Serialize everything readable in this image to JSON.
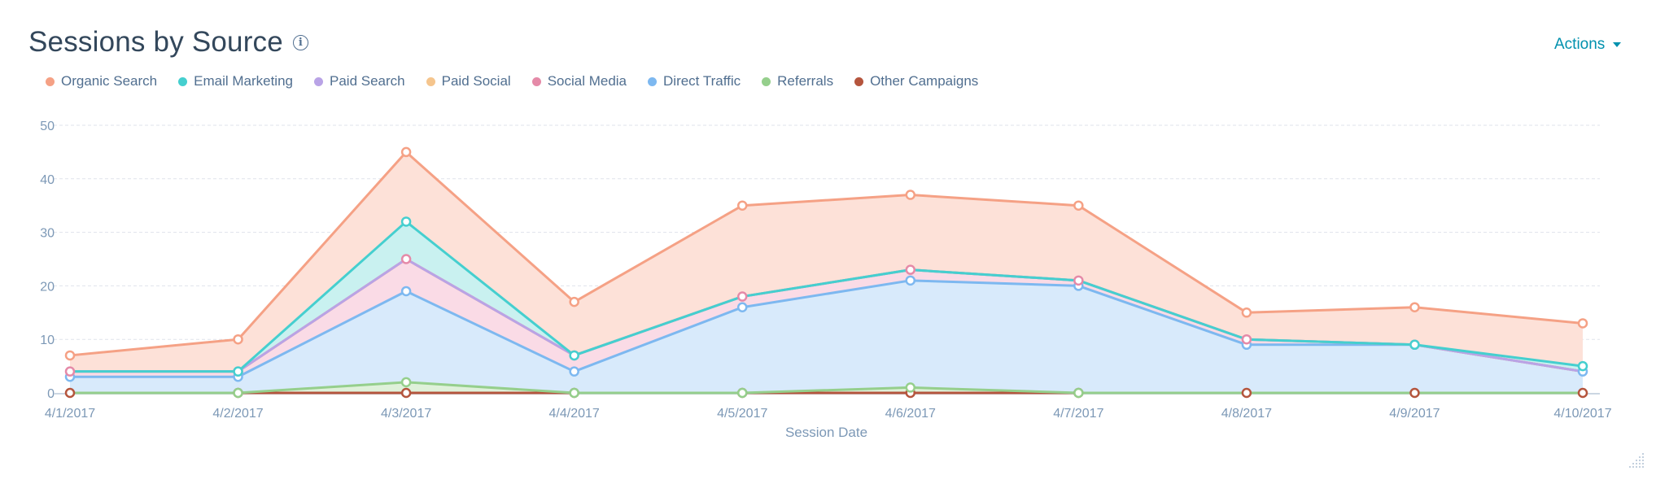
{
  "header": {
    "title": "Sessions by Source",
    "info_icon": "info-icon",
    "actions_label": "Actions"
  },
  "chart_data": {
    "type": "area",
    "stacked": true,
    "title": "Sessions by Source",
    "xlabel": "Session Date",
    "ylabel": "",
    "ylim": [
      0,
      50
    ],
    "yticks": [
      "0",
      "10",
      "20",
      "30",
      "40",
      "50"
    ],
    "grid": true,
    "legend_position": "top-left",
    "categories": [
      "4/1/2017",
      "4/2/2017",
      "4/3/2017",
      "4/4/2017",
      "4/5/2017",
      "4/6/2017",
      "4/7/2017",
      "4/8/2017",
      "4/9/2017",
      "4/10/2017"
    ],
    "series": [
      {
        "name": "Organic Search",
        "color": "#f5a185",
        "fill": "#fde1d8",
        "values": [
          3,
          6,
          13,
          10,
          17,
          14,
          14,
          5,
          7,
          8
        ]
      },
      {
        "name": "Email Marketing",
        "color": "#45cfcf",
        "fill": "#c9f1f0",
        "values": [
          0,
          0,
          7,
          0,
          0,
          0,
          0,
          0,
          0,
          1
        ]
      },
      {
        "name": "Paid Search",
        "color": "#b9a3e6",
        "fill": "#e7defa",
        "values": [
          0,
          0,
          0,
          0,
          0,
          0,
          0,
          0,
          0,
          0
        ]
      },
      {
        "name": "Paid Social",
        "color": "#f5c58d",
        "fill": "#fcecd6",
        "values": [
          0,
          0,
          0,
          0,
          0,
          0,
          0,
          0,
          0,
          0
        ]
      },
      {
        "name": "Social Media",
        "color": "#e58aa8",
        "fill": "#fadbe6",
        "values": [
          1,
          1,
          6,
          3,
          2,
          2,
          1,
          1,
          0,
          0
        ]
      },
      {
        "name": "Direct Traffic",
        "color": "#7db8f0",
        "fill": "#d8eafb",
        "values": [
          3,
          3,
          17,
          4,
          16,
          20,
          20,
          9,
          9,
          4
        ]
      },
      {
        "name": "Referrals",
        "color": "#95cf8c",
        "fill": "#dff1da",
        "values": [
          0,
          0,
          2,
          0,
          0,
          1,
          0,
          0,
          0,
          0
        ]
      },
      {
        "name": "Other Campaigns",
        "color": "#b5553d",
        "fill": "#ecd0c8",
        "values": [
          0,
          0,
          0,
          0,
          0,
          0,
          0,
          0,
          0,
          0
        ]
      }
    ]
  }
}
